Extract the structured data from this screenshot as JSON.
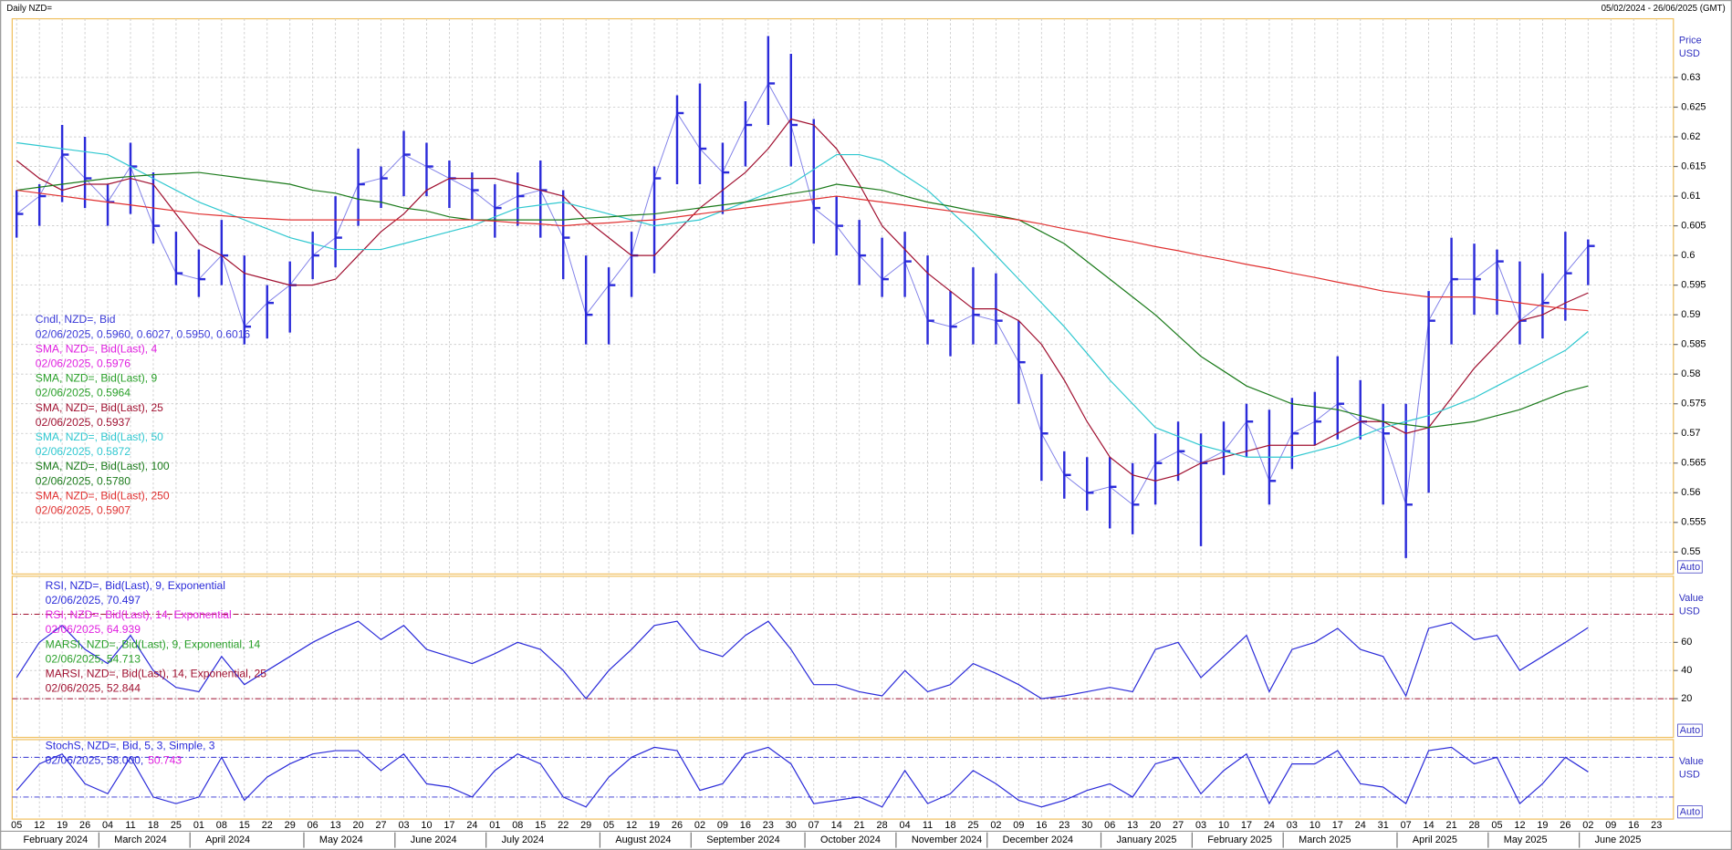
{
  "header": {
    "title": "Daily NZD=",
    "range": "05/02/2024 - 26/06/2025 (GMT)"
  },
  "x_axis": {
    "ticks": [
      "05",
      "12",
      "19",
      "26",
      "04",
      "11",
      "18",
      "25",
      "01",
      "08",
      "15",
      "22",
      "29",
      "06",
      "13",
      "20",
      "27",
      "03",
      "10",
      "17",
      "24",
      "01",
      "08",
      "15",
      "22",
      "29",
      "05",
      "12",
      "19",
      "26",
      "02",
      "09",
      "16",
      "23",
      "30",
      "07",
      "14",
      "21",
      "28",
      "04",
      "11",
      "18",
      "25",
      "02",
      "09",
      "16",
      "23",
      "30",
      "06",
      "13",
      "20",
      "27",
      "03",
      "10",
      "17",
      "24",
      "03",
      "10",
      "17",
      "24",
      "31",
      "07",
      "14",
      "21",
      "28",
      "05",
      "12",
      "19",
      "26",
      "02",
      "09",
      "16",
      "23"
    ],
    "months": [
      "February 2024",
      "March 2024",
      "April 2024",
      "May 2024",
      "June 2024",
      "July 2024",
      "August 2024",
      "September 2024",
      "October 2024",
      "November 2024",
      "December 2024",
      "January 2025",
      "February 2025",
      "March 2025",
      "April 2025",
      "May 2025",
      "June 2025"
    ]
  },
  "chart_data": [
    {
      "type": "hlc",
      "y_label": "Price",
      "y_unit": "USD",
      "scale_mode": "Auto",
      "color": "#2b2bd9",
      "grid": true,
      "ylim": [
        0.5463,
        0.6399
      ],
      "yticks": [
        0.55,
        0.555,
        0.56,
        0.565,
        0.57,
        0.575,
        0.58,
        0.585,
        0.59,
        0.595,
        0.6,
        0.605,
        0.61,
        0.615,
        0.62,
        0.625,
        0.63
      ],
      "legend": [
        {
          "name": "Cndl, NZD=, Bid",
          "label": "02/06/2025, 0.5960, 0.6027, 0.5950, 0.6016",
          "color": "#3a3ad8"
        },
        {
          "name": "SMA, NZD=, Bid(Last),  4",
          "label": "02/06/2025, 0.5976",
          "color": "#e020e0"
        },
        {
          "name": "SMA, NZD=, Bid(Last),  9",
          "label": "02/06/2025, 0.5964",
          "color": "#2aa02a"
        }
      ],
      "high": [
        0.611,
        0.612,
        0.622,
        0.62,
        0.612,
        0.619,
        0.614,
        0.604,
        0.601,
        0.606,
        0.6,
        0.595,
        0.599,
        0.604,
        0.61,
        0.618,
        0.615,
        0.621,
        0.619,
        0.616,
        0.614,
        0.612,
        0.614,
        0.616,
        0.611,
        0.6,
        0.598,
        0.604,
        0.615,
        0.627,
        0.629,
        0.619,
        0.626,
        0.637,
        0.634,
        0.623,
        0.61,
        0.606,
        0.603,
        0.604,
        0.6,
        0.594,
        0.598,
        0.597,
        0.589,
        0.58,
        0.567,
        0.566,
        0.566,
        0.565,
        0.57,
        0.572,
        0.57,
        0.572,
        0.575,
        0.574,
        0.576,
        0.577,
        0.583,
        0.579,
        0.575,
        0.575,
        0.594,
        0.603,
        0.602,
        0.601,
        0.599,
        0.597,
        0.604,
        0.6027,
        null,
        null,
        null
      ],
      "low": [
        0.603,
        0.605,
        0.609,
        0.608,
        0.605,
        0.607,
        0.602,
        0.595,
        0.593,
        0.595,
        0.585,
        0.586,
        0.587,
        0.596,
        0.598,
        0.605,
        0.608,
        0.61,
        0.61,
        0.608,
        0.606,
        0.603,
        0.605,
        0.603,
        0.596,
        0.585,
        0.585,
        0.593,
        0.597,
        0.612,
        0.612,
        0.607,
        0.615,
        0.622,
        0.615,
        0.602,
        0.6,
        0.595,
        0.593,
        0.593,
        0.585,
        0.583,
        0.585,
        0.585,
        0.575,
        0.562,
        0.559,
        0.557,
        0.554,
        0.553,
        0.558,
        0.562,
        0.551,
        0.563,
        0.566,
        0.558,
        0.564,
        0.568,
        0.569,
        0.569,
        0.558,
        0.549,
        0.56,
        0.585,
        0.59,
        0.59,
        0.585,
        0.586,
        0.589,
        0.595,
        null,
        null,
        null
      ],
      "close": [
        0.607,
        0.61,
        0.617,
        0.613,
        0.609,
        0.615,
        0.605,
        0.597,
        0.596,
        0.6,
        0.588,
        0.592,
        0.595,
        0.6,
        0.603,
        0.612,
        0.613,
        0.617,
        0.615,
        0.613,
        0.611,
        0.608,
        0.61,
        0.611,
        0.603,
        0.59,
        0.595,
        0.6,
        0.613,
        0.624,
        0.618,
        0.614,
        0.622,
        0.629,
        0.622,
        0.608,
        0.605,
        0.6,
        0.596,
        0.599,
        0.589,
        0.588,
        0.59,
        0.589,
        0.582,
        0.57,
        0.563,
        0.56,
        0.561,
        0.558,
        0.565,
        0.567,
        0.565,
        0.567,
        0.572,
        0.562,
        0.57,
        0.572,
        0.575,
        0.572,
        0.57,
        0.558,
        0.589,
        0.596,
        0.596,
        0.599,
        0.589,
        0.592,
        0.597,
        0.6016,
        null,
        null,
        null
      ],
      "series": [
        {
          "name": "SMA, NZD=, Bid(Last),  25",
          "label": "02/06/2025, 0.5937",
          "color": "#a01030",
          "values": [
            0.616,
            0.613,
            0.611,
            0.612,
            0.612,
            0.613,
            0.612,
            0.607,
            0.602,
            0.6,
            0.597,
            0.596,
            0.595,
            0.595,
            0.596,
            0.6,
            0.604,
            0.607,
            0.611,
            0.613,
            0.613,
            0.613,
            0.612,
            0.611,
            0.61,
            0.606,
            0.603,
            0.6,
            0.6,
            0.604,
            0.608,
            0.611,
            0.614,
            0.618,
            0.623,
            0.622,
            0.618,
            0.612,
            0.605,
            0.601,
            0.597,
            0.594,
            0.591,
            0.591,
            0.589,
            0.585,
            0.579,
            0.572,
            0.566,
            0.563,
            0.562,
            0.563,
            0.565,
            0.566,
            0.567,
            0.568,
            0.568,
            0.568,
            0.57,
            0.572,
            0.572,
            0.57,
            0.571,
            0.576,
            0.581,
            0.585,
            0.589,
            0.59,
            0.592,
            0.5937,
            null,
            null,
            null
          ]
        },
        {
          "name": "SMA, NZD=, Bid(Last),  50",
          "label": "02/06/2025, 0.5872",
          "color": "#30c8d0",
          "values": [
            0.619,
            0.6185,
            0.618,
            0.6175,
            0.617,
            0.615,
            0.613,
            0.611,
            0.609,
            0.6075,
            0.606,
            0.6045,
            0.603,
            0.602,
            0.601,
            0.601,
            0.601,
            0.602,
            0.603,
            0.604,
            0.605,
            0.6065,
            0.608,
            0.6085,
            0.609,
            0.608,
            0.607,
            0.606,
            0.605,
            0.6055,
            0.606,
            0.6075,
            0.609,
            0.6105,
            0.612,
            0.6145,
            0.617,
            0.617,
            0.616,
            0.6135,
            0.611,
            0.6075,
            0.604,
            0.6,
            0.596,
            0.592,
            0.588,
            0.5835,
            0.579,
            0.575,
            0.571,
            0.5695,
            0.568,
            0.567,
            0.566,
            0.566,
            0.566,
            0.567,
            0.568,
            0.5695,
            0.571,
            0.572,
            0.573,
            0.5745,
            0.576,
            0.578,
            0.58,
            0.582,
            0.584,
            0.5872,
            null,
            null,
            null
          ]
        },
        {
          "name": "SMA, NZD=, Bid(Last),  100",
          "label": "02/06/2025, 0.5780",
          "color": "#1a7a1a",
          "values": [
            0.611,
            0.6115,
            0.612,
            0.6125,
            0.613,
            0.6133,
            0.6136,
            0.6138,
            0.614,
            0.6135,
            0.613,
            0.6125,
            0.612,
            0.611,
            0.6105,
            0.6095,
            0.609,
            0.608,
            0.6075,
            0.6065,
            0.606,
            0.606,
            0.606,
            0.606,
            0.606,
            0.6063,
            0.6065,
            0.6068,
            0.607,
            0.6075,
            0.608,
            0.6085,
            0.609,
            0.6097,
            0.6104,
            0.611,
            0.612,
            0.6115,
            0.611,
            0.61,
            0.609,
            0.6083,
            0.6075,
            0.6068,
            0.606,
            0.604,
            0.602,
            0.599,
            0.596,
            0.593,
            0.59,
            0.5865,
            0.583,
            0.5805,
            0.578,
            0.5765,
            0.575,
            0.5745,
            0.574,
            0.573,
            0.572,
            0.5715,
            0.571,
            0.5715,
            0.572,
            0.573,
            0.574,
            0.5755,
            0.577,
            0.578,
            null,
            null,
            null
          ]
        },
        {
          "name": "SMA, NZD=, Bid(Last),  250",
          "label": "02/06/2025, 0.5907",
          "color": "#e03030",
          "values": [
            0.611,
            0.6105,
            0.61,
            0.6095,
            0.609,
            0.6085,
            0.608,
            0.6075,
            0.607,
            0.6067,
            0.6064,
            0.6062,
            0.606,
            0.606,
            0.606,
            0.606,
            0.606,
            0.606,
            0.606,
            0.606,
            0.606,
            0.6058,
            0.6055,
            0.6053,
            0.605,
            0.6053,
            0.6055,
            0.6058,
            0.606,
            0.6065,
            0.607,
            0.6075,
            0.608,
            0.6085,
            0.609,
            0.6095,
            0.61,
            0.6095,
            0.609,
            0.6085,
            0.608,
            0.6075,
            0.607,
            0.6065,
            0.606,
            0.6053,
            0.6045,
            0.6038,
            0.603,
            0.6023,
            0.6015,
            0.6008,
            0.6,
            0.5993,
            0.5985,
            0.5978,
            0.597,
            0.5963,
            0.5955,
            0.5948,
            0.594,
            0.5935,
            0.593,
            0.593,
            0.593,
            0.5925,
            0.592,
            0.5915,
            0.591,
            0.5907,
            null,
            null,
            null
          ]
        }
      ]
    },
    {
      "type": "line",
      "y_label": "Value",
      "y_unit": "USD",
      "scale_mode": "Auto",
      "grid": true,
      "ylim": [
        -7.5,
        107
      ],
      "yticks": [
        20,
        40,
        60
      ],
      "ref_lines": [
        20,
        80
      ],
      "ref_color": "#a01030",
      "series": [
        {
          "name": "RSI, NZD=, Bid(Last),  9, Exponential",
          "label": "02/06/2025, 70.497",
          "color": "#2b2bd9",
          "values": [
            35,
            60,
            72,
            55,
            45,
            65,
            40,
            28,
            25,
            50,
            30,
            40,
            50,
            60,
            68,
            75,
            62,
            72,
            55,
            50,
            45,
            52,
            60,
            55,
            40,
            20,
            40,
            55,
            72,
            75,
            55,
            50,
            65,
            75,
            55,
            30,
            30,
            25,
            22,
            40,
            25,
            30,
            45,
            38,
            30,
            20,
            22,
            25,
            28,
            25,
            55,
            60,
            35,
            50,
            65,
            25,
            55,
            60,
            70,
            55,
            50,
            22,
            70,
            74,
            62,
            65,
            40,
            50,
            60,
            70.497,
            null,
            null,
            null
          ]
        }
      ],
      "legend": [
        {
          "name": "RSI, NZD=, Bid(Last),  14, Exponential",
          "label": "02/06/2025, 64.939",
          "color": "#e020e0"
        },
        {
          "name": "MARSI, NZD=, Bid(Last),  9, Exponential, 14",
          "label": "02/06/2025, 54.713",
          "color": "#2aa02a"
        },
        {
          "name": "MARSI, NZD=, Bid(Last),  14, Exponential, 25",
          "label": "02/06/2025, 52.844",
          "color": "#a01030"
        }
      ]
    },
    {
      "type": "line",
      "y_label": "Value",
      "y_unit": "USD",
      "scale_mode": "Auto",
      "grid": false,
      "ylim": [
        -13.3,
        106.7
      ],
      "yticks": [],
      "ref_lines": [
        20,
        80
      ],
      "ref_color": "#3030d0",
      "series": [
        {
          "name": "StochS, NZD=, Bid,  5, 3, Simple, 3",
          "label": "02/06/2025, 58.000,",
          "label2": "50.743",
          "color": "#2b2bd9",
          "values": [
            30,
            70,
            85,
            40,
            25,
            80,
            20,
            10,
            20,
            80,
            15,
            50,
            70,
            85,
            90,
            90,
            60,
            85,
            40,
            35,
            20,
            60,
            85,
            70,
            20,
            5,
            50,
            80,
            95,
            90,
            30,
            40,
            85,
            95,
            70,
            10,
            15,
            20,
            5,
            60,
            10,
            25,
            60,
            40,
            15,
            5,
            15,
            30,
            40,
            20,
            70,
            80,
            25,
            60,
            85,
            10,
            70,
            70,
            90,
            40,
            35,
            10,
            90,
            95,
            70,
            80,
            10,
            40,
            80,
            58,
            null,
            null,
            null
          ]
        }
      ],
      "legend": []
    }
  ]
}
